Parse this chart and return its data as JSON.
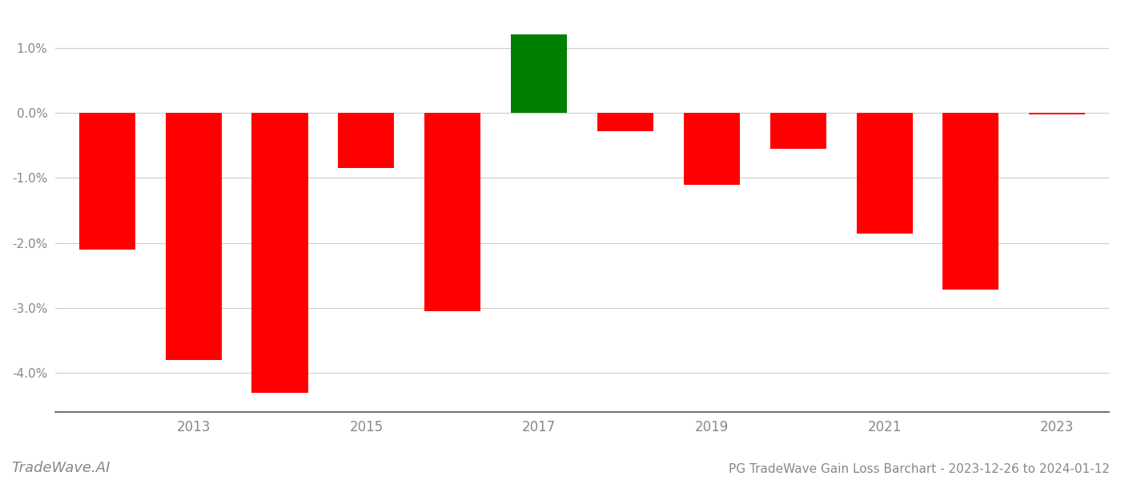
{
  "years": [
    2012,
    2013,
    2014,
    2015,
    2016,
    2017,
    2018,
    2019,
    2020,
    2021,
    2022,
    2023
  ],
  "values_pct": [
    -2.1,
    -3.8,
    -4.3,
    -0.85,
    -3.05,
    1.2,
    -0.28,
    -1.1,
    -0.55,
    -1.85,
    -2.72,
    -0.02
  ],
  "bar_color_pos": "#008000",
  "bar_color_neg": "#ff0000",
  "title": "PG TradeWave Gain Loss Barchart - 2023-12-26 to 2024-01-12",
  "watermark": "TradeWave.AI",
  "ylim_min": -4.6,
  "ylim_max": 1.55,
  "background_color": "#ffffff",
  "grid_color": "#cccccc",
  "axis_color": "#555555",
  "tick_color": "#888888",
  "title_fontsize": 11,
  "watermark_fontsize": 13,
  "bar_width": 0.65
}
